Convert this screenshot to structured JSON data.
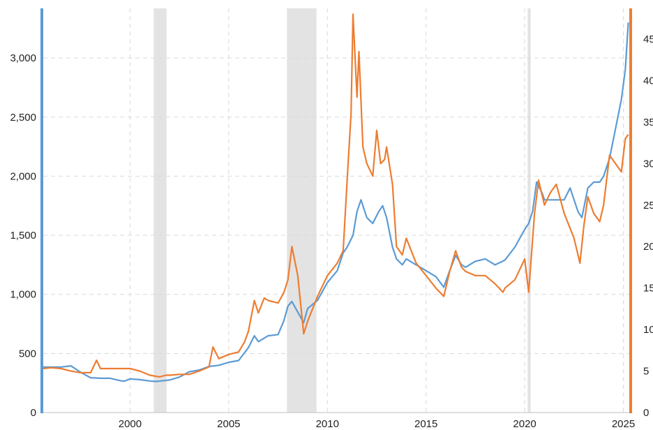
{
  "chart_data": {
    "type": "line",
    "title": "",
    "xlabel": "",
    "ylabel": "",
    "y2label": "",
    "xlim": [
      1995.6,
      2025.3
    ],
    "ylim": [
      0,
      3420
    ],
    "y2lim": [
      0,
      48.7
    ],
    "grid": true,
    "legend": "none",
    "x_ticks": [
      {
        "value": 2000,
        "label": "2000"
      },
      {
        "value": 2005,
        "label": "2005"
      },
      {
        "value": 2010,
        "label": "2010"
      },
      {
        "value": 2015,
        "label": "2015"
      },
      {
        "value": 2020,
        "label": "2020"
      },
      {
        "value": 2025,
        "label": "2025"
      }
    ],
    "y_ticks": [
      {
        "value": 0,
        "label": "0"
      },
      {
        "value": 500,
        "label": "500"
      },
      {
        "value": 1000,
        "label": "1,000"
      },
      {
        "value": 1500,
        "label": "1,500"
      },
      {
        "value": 2000,
        "label": "2,000"
      },
      {
        "value": 2500,
        "label": "2,500"
      },
      {
        "value": 3000,
        "label": "3,000"
      }
    ],
    "y2_ticks": [
      {
        "value": 0,
        "label": "0"
      },
      {
        "value": 5,
        "label": "5"
      },
      {
        "value": 10,
        "label": "10"
      },
      {
        "value": 15,
        "label": "15"
      },
      {
        "value": 20,
        "label": "20"
      },
      {
        "value": 25,
        "label": "25"
      },
      {
        "value": 30,
        "label": "30"
      },
      {
        "value": 35,
        "label": "35"
      },
      {
        "value": 40,
        "label": "40"
      },
      {
        "value": 45,
        "label": "45"
      }
    ],
    "shaded_periods": [
      {
        "start": 2001.2,
        "end": 2001.85
      },
      {
        "start": 2007.95,
        "end": 2009.45
      },
      {
        "start": 2020.15,
        "end": 2020.3
      }
    ],
    "series": [
      {
        "axis": "left",
        "color": "#5b9bd5",
        "x": [
          1995.6,
          1996.0,
          1996.5,
          1997.0,
          1997.5,
          1998.0,
          1998.5,
          1999.0,
          1999.5,
          1999.7,
          2000.0,
          2000.5,
          2001.0,
          2001.3,
          2001.7,
          2002.0,
          2002.5,
          2003.0,
          2003.5,
          2004.0,
          2004.5,
          2005.0,
          2005.5,
          2006.0,
          2006.3,
          2006.5,
          2007.0,
          2007.5,
          2007.8,
          2008.0,
          2008.2,
          2008.5,
          2008.8,
          2009.0,
          2009.5,
          2010.0,
          2010.5,
          2010.8,
          2011.0,
          2011.3,
          2011.5,
          2011.7,
          2012.0,
          2012.3,
          2012.6,
          2012.8,
          2013.0,
          2013.3,
          2013.5,
          2013.8,
          2014.0,
          2014.5,
          2015.0,
          2015.5,
          2015.9,
          2016.2,
          2016.5,
          2016.8,
          2017.0,
          2017.5,
          2018.0,
          2018.5,
          2019.0,
          2019.5,
          2020.0,
          2020.2,
          2020.4,
          2020.6,
          2020.9,
          2021.0,
          2021.5,
          2022.0,
          2022.3,
          2022.7,
          2022.9,
          2023.2,
          2023.5,
          2023.8,
          2024.0,
          2024.3,
          2024.6,
          2024.9,
          2025.1,
          2025.25
        ],
        "values": [
          385,
          385,
          385,
          395,
          340,
          295,
          290,
          290,
          270,
          265,
          285,
          278,
          267,
          263,
          270,
          275,
          300,
          345,
          360,
          390,
          400,
          425,
          440,
          550,
          650,
          600,
          650,
          660,
          780,
          900,
          940,
          850,
          760,
          880,
          950,
          1100,
          1200,
          1350,
          1400,
          1500,
          1700,
          1800,
          1650,
          1600,
          1700,
          1750,
          1650,
          1400,
          1300,
          1250,
          1300,
          1250,
          1200,
          1150,
          1060,
          1200,
          1330,
          1250,
          1230,
          1280,
          1300,
          1250,
          1290,
          1400,
          1550,
          1600,
          1700,
          1950,
          1850,
          1800,
          1800,
          1800,
          1900,
          1700,
          1650,
          1900,
          1950,
          1950,
          2000,
          2150,
          2400,
          2650,
          2900,
          3300
        ]
      },
      {
        "axis": "right",
        "color": "#ed7d31",
        "x": [
          1995.6,
          1996.0,
          1996.5,
          1997.0,
          1997.5,
          1998.0,
          1998.3,
          1998.5,
          1999.0,
          1999.5,
          2000.0,
          2000.5,
          2001.0,
          2001.5,
          2001.8,
          2002.0,
          2002.5,
          2003.0,
          2003.5,
          2004.0,
          2004.2,
          2004.5,
          2005.0,
          2005.5,
          2005.8,
          2006.0,
          2006.3,
          2006.5,
          2006.8,
          2007.0,
          2007.5,
          2007.8,
          2008.0,
          2008.2,
          2008.5,
          2008.8,
          2009.0,
          2009.5,
          2010.0,
          2010.5,
          2010.8,
          2011.0,
          2011.2,
          2011.3,
          2011.5,
          2011.6,
          2011.8,
          2012.0,
          2012.3,
          2012.5,
          2012.7,
          2012.9,
          2013.0,
          2013.3,
          2013.5,
          2013.8,
          2014.0,
          2014.5,
          2015.0,
          2015.5,
          2015.9,
          2016.2,
          2016.5,
          2016.8,
          2017.0,
          2017.5,
          2018.0,
          2018.5,
          2018.9,
          2019.0,
          2019.5,
          2020.0,
          2020.2,
          2020.5,
          2020.7,
          2021.0,
          2021.3,
          2021.6,
          2022.0,
          2022.5,
          2022.8,
          2023.0,
          2023.2,
          2023.5,
          2023.8,
          2024.0,
          2024.3,
          2024.6,
          2024.9,
          2025.1,
          2025.25
        ],
        "values": [
          5.3,
          5.4,
          5.3,
          5.0,
          4.8,
          4.8,
          6.3,
          5.3,
          5.3,
          5.3,
          5.3,
          5.0,
          4.5,
          4.3,
          4.5,
          4.5,
          4.6,
          4.6,
          5.0,
          5.5,
          7.9,
          6.5,
          7.0,
          7.3,
          8.5,
          9.8,
          13.5,
          12.0,
          13.8,
          13.5,
          13.2,
          14.5,
          16.0,
          20.0,
          16.5,
          9.5,
          11.0,
          14.0,
          16.5,
          18.0,
          19.5,
          28.0,
          36.0,
          48.0,
          38.0,
          43.5,
          32.0,
          30.0,
          28.5,
          34.0,
          30.0,
          30.5,
          32.0,
          27.5,
          20.0,
          19.0,
          21.0,
          18.0,
          16.5,
          15.0,
          14.0,
          17.0,
          19.5,
          17.5,
          17.0,
          16.5,
          16.5,
          15.5,
          14.5,
          15.0,
          16.0,
          18.5,
          14.5,
          24.0,
          28.0,
          25.0,
          26.5,
          27.5,
          24.0,
          21.0,
          18.0,
          22.5,
          26.0,
          24.0,
          23.0,
          25.0,
          31.0,
          30.0,
          29.0,
          33.0,
          33.5
        ]
      }
    ]
  }
}
